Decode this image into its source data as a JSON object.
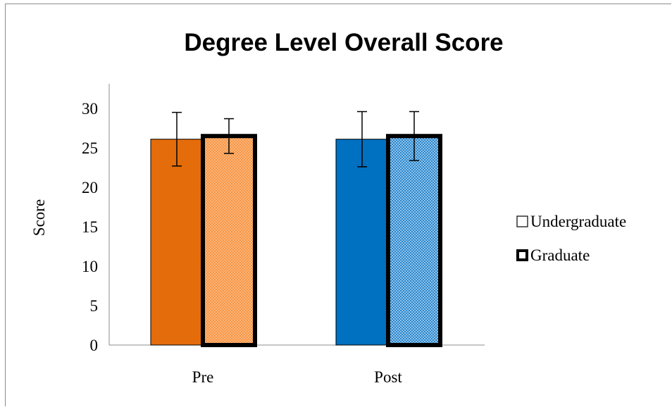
{
  "chart_data": {
    "type": "bar",
    "title": "Degree Level Overall Score",
    "xlabel": "",
    "ylabel": "Score",
    "categories": [
      "Pre",
      "Post"
    ],
    "ylim": [
      0,
      30
    ],
    "yticks": [
      "0",
      "5",
      "10",
      "15",
      "20",
      "25",
      "30"
    ],
    "legend_position": "right",
    "series": [
      {
        "name": "Undergraduate",
        "values": [
          26.1,
          26.1
        ],
        "error": [
          3.4,
          3.5
        ],
        "colors": [
          "#E46C0A",
          "#0070C0"
        ],
        "pattern": "solid",
        "outline": "thin"
      },
      {
        "name": "Graduate",
        "values": [
          26.5,
          26.5
        ],
        "error": [
          2.2,
          3.1
        ],
        "colors": [
          "#F79646",
          "#4A9FD6"
        ],
        "pattern": "dotted",
        "outline": "thick"
      }
    ]
  }
}
